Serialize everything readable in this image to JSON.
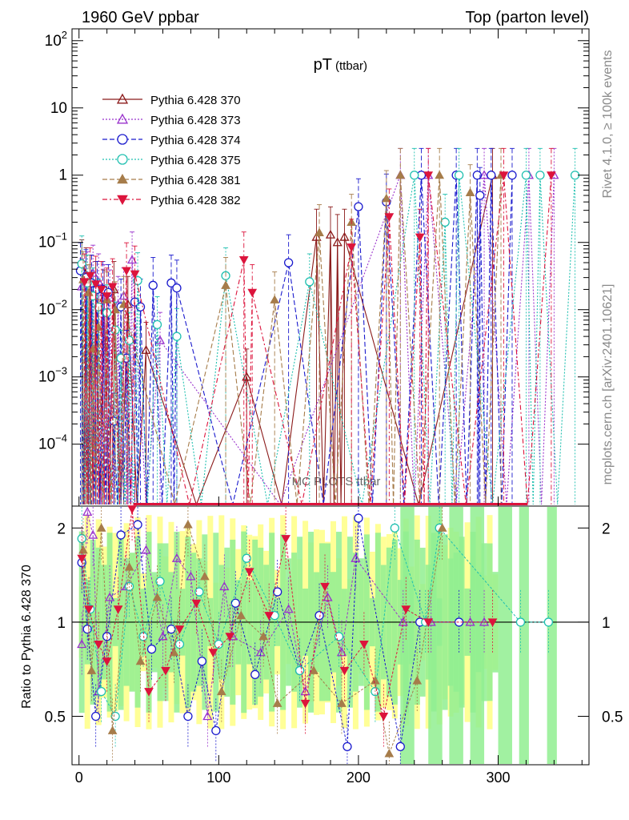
{
  "header": {
    "left": "1960 GeV ppbar",
    "right": "Top (parton level)"
  },
  "side_labels": {
    "rivet": "Rivet 4.1.0, ≥ 100k events",
    "mcplots": "mcplots.cern.ch [arXiv:2401.10621]"
  },
  "watermark": "MC PLOTS ttbar",
  "chart_data": {
    "type": "scatter",
    "title": "pT",
    "title_sub": "(ttbar)",
    "xlabel": "",
    "ylabel_top": "",
    "ylabel_bottom": "Ratio to Pythia 6.428 370",
    "xlim": [
      -5,
      365
    ],
    "ylim_top": [
      1.2e-05,
      150
    ],
    "ylim_bottom": [
      0.35,
      2.35
    ],
    "yscale_top": "log",
    "yscale_bottom": "log",
    "x_ticks": [
      "0",
      "100",
      "200",
      "300"
    ],
    "y_ticks_top": [
      "10^-4",
      "10^-3",
      "10^-2",
      "10^-1",
      "1",
      "10",
      "10^2"
    ],
    "y_ticks_bottom": [
      "0.5",
      "1",
      "2"
    ],
    "legend_position": "top-left",
    "series": [
      {
        "name": "Pythia 6.428 370",
        "color": "#8b1a1a",
        "marker": "triangle-open",
        "line": "solid",
        "points": [
          [
            2,
            0.042
          ],
          [
            5,
            0.032
          ],
          [
            8,
            0.025
          ],
          [
            12,
            0.02
          ],
          [
            18,
            0.015
          ],
          [
            25,
            0.02
          ],
          [
            35,
            0.012
          ],
          [
            48,
            0.0025
          ],
          [
            120,
            0.001
          ],
          [
            170,
            0.12
          ],
          [
            180,
            0.13
          ],
          [
            185,
            0.1
          ],
          [
            190,
            0.12
          ],
          [
            296,
            1.0
          ]
        ]
      },
      {
        "name": "Pythia 6.428 373",
        "color": "#9932cc",
        "marker": "triangle-open",
        "line": "dotted",
        "points": [
          [
            2,
            0.022
          ],
          [
            6,
            0.028
          ],
          [
            10,
            0.035
          ],
          [
            14,
            0.026
          ],
          [
            18,
            0.018
          ],
          [
            22,
            0.015
          ],
          [
            28,
            0.012
          ],
          [
            32,
            0.016
          ],
          [
            38,
            0.055
          ],
          [
            58,
            0.0035
          ],
          [
            230,
            1.0
          ],
          [
            250,
            1.0
          ],
          [
            290,
            1.0
          ],
          [
            322,
            1.0
          ],
          [
            340,
            1.0
          ]
        ]
      },
      {
        "name": "Pythia 6.428 374",
        "color": "#1a1acd",
        "marker": "circle-open",
        "line": "dashed",
        "points": [
          [
            1,
            0.038
          ],
          [
            5,
            0.03
          ],
          [
            9,
            0.025
          ],
          [
            13,
            0.02
          ],
          [
            17,
            0.02
          ],
          [
            21,
            0.018
          ],
          [
            25,
            0.00022
          ],
          [
            30,
            0.011
          ],
          [
            34,
            0.0019
          ],
          [
            40,
            0.013
          ],
          [
            44,
            0.011
          ],
          [
            53,
            0.023
          ],
          [
            66,
            0.025
          ],
          [
            70,
            0.021
          ],
          [
            150,
            0.05
          ],
          [
            200,
            0.34
          ],
          [
            220,
            0.4
          ],
          [
            245,
            1.0
          ],
          [
            270,
            1.0
          ],
          [
            285,
            1.0
          ],
          [
            287,
            0.5
          ],
          [
            295,
            1.0
          ],
          [
            310,
            1.0
          ]
        ]
      },
      {
        "name": "Pythia 6.428 375",
        "color": "#20c0b0",
        "marker": "circle-open",
        "line": "dotted",
        "points": [
          [
            2,
            0.048
          ],
          [
            6,
            0.025
          ],
          [
            10,
            0.016
          ],
          [
            14,
            0.011
          ],
          [
            20,
            0.009
          ],
          [
            26,
            0.005
          ],
          [
            30,
            0.0019
          ],
          [
            36,
            0.0035
          ],
          [
            42,
            0.027
          ],
          [
            56,
            0.006
          ],
          [
            70,
            0.004
          ],
          [
            105,
            0.032
          ],
          [
            165,
            0.026
          ],
          [
            240,
            1.0
          ],
          [
            262,
            0.2
          ],
          [
            272,
            1.0
          ],
          [
            320,
            1.0
          ],
          [
            330,
            1.0
          ],
          [
            355,
            1.0
          ]
        ]
      },
      {
        "name": "Pythia 6.428 381",
        "color": "#a67c4a",
        "marker": "triangle-filled",
        "line": "dashed",
        "points": [
          [
            3,
            0.028
          ],
          [
            7,
            0.018
          ],
          [
            10,
            0.0026
          ],
          [
            14,
            0.0055
          ],
          [
            20,
            0.014
          ],
          [
            26,
            0.01
          ],
          [
            32,
            0.012
          ],
          [
            105,
            0.023
          ],
          [
            140,
            0.014
          ],
          [
            172,
            0.14
          ],
          [
            195,
            0.2
          ],
          [
            220,
            0.45
          ],
          [
            230,
            1.0
          ],
          [
            258,
            1.0
          ],
          [
            280,
            0.55
          ],
          [
            302,
            1.0
          ]
        ]
      },
      {
        "name": "Pythia 6.428 382",
        "color": "#dc143c",
        "marker": "triangle-down-filled",
        "line": "dashdot",
        "points": [
          [
            4,
            0.026
          ],
          [
            8,
            0.032
          ],
          [
            12,
            0.024
          ],
          [
            16,
            0.02
          ],
          [
            20,
            0.016
          ],
          [
            24,
            0.022
          ],
          [
            34,
            0.038
          ],
          [
            40,
            0.034
          ],
          [
            118,
            0.055
          ],
          [
            124,
            0.018
          ],
          [
            195,
            0.085
          ],
          [
            222,
            0.24
          ],
          [
            244,
            0.12
          ],
          [
            250,
            1.0
          ],
          [
            304,
            1.0
          ],
          [
            338,
            1.0
          ]
        ]
      }
    ],
    "ratio_series": [
      {
        "name": "Pythia 6.428 373",
        "color": "#9932cc",
        "marker": "triangle-open",
        "points": [
          [
            2,
            0.85
          ],
          [
            6,
            2.25
          ],
          [
            10,
            1.9
          ],
          [
            14,
            0.6
          ],
          [
            22,
            1.2
          ],
          [
            34,
            1.3
          ],
          [
            48,
            1.7
          ],
          [
            60,
            0.9
          ],
          [
            70,
            1.6
          ],
          [
            80,
            1.4
          ],
          [
            92,
            0.5
          ],
          [
            104,
            1.3
          ],
          [
            110,
            0.9
          ],
          [
            130,
            0.8
          ],
          [
            150,
            1.1
          ],
          [
            162,
            0.6
          ],
          [
            178,
            1.2
          ],
          [
            188,
            0.8
          ],
          [
            198,
            1.6
          ],
          [
            232,
            1.0
          ],
          [
            252,
            1.0
          ],
          [
            280,
            1.0
          ],
          [
            290,
            1.0
          ]
        ]
      },
      {
        "name": "Pythia 6.428 374",
        "color": "#1a1acd",
        "marker": "circle-open",
        "points": [
          [
            2,
            1.55
          ],
          [
            6,
            0.95
          ],
          [
            12,
            0.5
          ],
          [
            20,
            0.9
          ],
          [
            30,
            1.9
          ],
          [
            42,
            2.05
          ],
          [
            52,
            0.82
          ],
          [
            66,
            0.95
          ],
          [
            78,
            0.5
          ],
          [
            88,
            0.75
          ],
          [
            98,
            0.45
          ],
          [
            112,
            1.15
          ],
          [
            126,
            0.68
          ],
          [
            142,
            1.25
          ],
          [
            158,
            0.7
          ],
          [
            172,
            1.05
          ],
          [
            192,
            0.4
          ],
          [
            200,
            2.15
          ],
          [
            230,
            0.4
          ],
          [
            244,
            1.0
          ],
          [
            272,
            1.0
          ]
        ]
      },
      {
        "name": "Pythia 6.428 375",
        "color": "#20c0b0",
        "marker": "circle-open",
        "points": [
          [
            2,
            1.85
          ],
          [
            8,
            1.1
          ],
          [
            16,
            0.6
          ],
          [
            26,
            0.5
          ],
          [
            36,
            1.3
          ],
          [
            46,
            0.9
          ],
          [
            58,
            1.35
          ],
          [
            72,
            0.85
          ],
          [
            86,
            1.25
          ],
          [
            100,
            0.85
          ],
          [
            120,
            1.6
          ],
          [
            140,
            1.05
          ],
          [
            158,
            0.7
          ],
          [
            186,
            0.9
          ],
          [
            212,
            0.6
          ],
          [
            226,
            2.0
          ],
          [
            248,
            1.0
          ],
          [
            258,
            2.0
          ],
          [
            316,
            1.0
          ],
          [
            336,
            1.0
          ]
        ]
      },
      {
        "name": "Pythia 6.428 381",
        "color": "#a67c4a",
        "marker": "triangle-filled",
        "points": [
          [
            3,
            1.7
          ],
          [
            9,
            0.7
          ],
          [
            16,
            2.0
          ],
          [
            24,
            0.45
          ],
          [
            36,
            1.5
          ],
          [
            44,
            0.75
          ],
          [
            56,
            1.2
          ],
          [
            68,
            0.8
          ],
          [
            78,
            2.05
          ],
          [
            90,
            1.4
          ],
          [
            102,
            0.6
          ],
          [
            116,
            1.05
          ],
          [
            132,
            0.9
          ],
          [
            142,
            0.55
          ],
          [
            168,
            0.7
          ],
          [
            188,
            0.55
          ],
          [
            212,
            0.65
          ],
          [
            222,
            0.38
          ],
          [
            242,
            0.65
          ],
          [
            260,
            2.0
          ]
        ]
      },
      {
        "name": "Pythia 6.428 382",
        "color": "#dc143c",
        "marker": "triangle-down-filled",
        "points": [
          [
            2,
            1.6
          ],
          [
            7,
            1.1
          ],
          [
            14,
            0.85
          ],
          [
            20,
            0.75
          ],
          [
            28,
            1.1
          ],
          [
            38,
            2.3
          ],
          [
            50,
            0.6
          ],
          [
            62,
            0.7
          ],
          [
            72,
            0.95
          ],
          [
            84,
            1.15
          ],
          [
            96,
            0.8
          ],
          [
            108,
            0.9
          ],
          [
            122,
            1.45
          ],
          [
            136,
            1.05
          ],
          [
            148,
            1.85
          ],
          [
            162,
            0.55
          ],
          [
            176,
            1.3
          ],
          [
            190,
            0.7
          ],
          [
            204,
            0.85
          ],
          [
            218,
            0.5
          ],
          [
            234,
            1.1
          ],
          [
            250,
            1.0
          ],
          [
            296,
            1.0
          ]
        ]
      }
    ],
    "ratio_reference": 1
  }
}
